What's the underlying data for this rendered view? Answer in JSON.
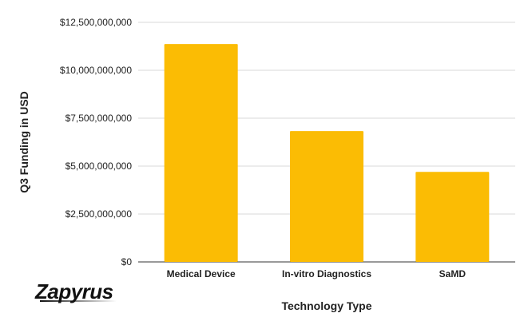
{
  "chart_data": {
    "type": "bar",
    "title": "",
    "xlabel": "Technology Type",
    "ylabel": "Q3 Funding in USD",
    "categories": [
      "Medical Device",
      "In-vitro Diagnostics",
      "SaMD"
    ],
    "values": [
      11370000000,
      6830000000,
      4700000000
    ],
    "ylim": [
      0,
      12500000000
    ],
    "yticks": [
      0,
      2500000000,
      5000000000,
      7500000000,
      10000000000,
      12500000000
    ],
    "ytick_labels": [
      "$0",
      "$2,500,000,000",
      "$5,000,000,000",
      "$7,500,000,000",
      "$10,000,000,000",
      "$12,500,000,000"
    ],
    "grid": true,
    "legend": "none",
    "bar_color": "#FBBC04"
  },
  "logo": {
    "text": "Zapyrus"
  }
}
